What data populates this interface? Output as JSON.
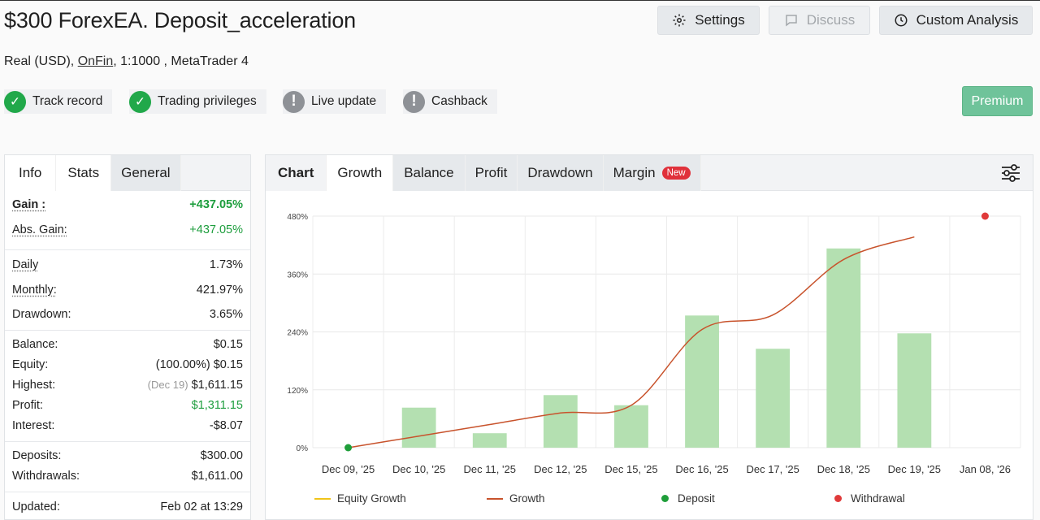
{
  "header": {
    "title": "$300 ForexEA. Deposit_acceleration",
    "subtitle_prefix": "Real (USD),",
    "subtitle_broker": "OnFin",
    "subtitle_suffix": ", 1:1000 , MetaTrader 4",
    "settings_label": "Settings",
    "discuss_label": "Discuss",
    "custom_analysis_label": "Custom Analysis",
    "premium_label": "Premium"
  },
  "badges": [
    {
      "label": "Track record",
      "status": "ok"
    },
    {
      "label": "Trading privileges",
      "status": "ok"
    },
    {
      "label": "Live update",
      "status": "warn"
    },
    {
      "label": "Cashback",
      "status": "warn"
    }
  ],
  "left_tabs": [
    "Info",
    "Stats",
    "General"
  ],
  "stats": {
    "gain_label": "Gain :",
    "gain": "+437.05%",
    "abs_gain_label": "Abs. Gain:",
    "abs_gain": "+437.05%",
    "daily_label": "Daily",
    "daily": "1.73%",
    "monthly_label": "Monthly:",
    "monthly": "421.97%",
    "drawdown_label": "Drawdown:",
    "drawdown": "3.65%",
    "balance_label": "Balance:",
    "balance": "$0.15",
    "equity_label": "Equity:",
    "equity_pct": "(100.00%)",
    "equity": "$0.15",
    "highest_label": "Highest:",
    "highest_date": "(Dec 19)",
    "highest": "$1,611.15",
    "profit_label": "Profit:",
    "profit": "$1,311.15",
    "interest_label": "Interest:",
    "interest": "-$8.07",
    "deposits_label": "Deposits:",
    "deposits": "$300.00",
    "withdrawals_label": "Withdrawals:",
    "withdrawals": "$1,611.00",
    "updated_label": "Updated:",
    "updated": "Feb 02 at 13:29"
  },
  "chart_tabs": {
    "chart": "Chart",
    "growth": "Growth",
    "balance": "Balance",
    "profit": "Profit",
    "drawdown": "Drawdown",
    "margin": "Margin",
    "new_pill": "New"
  },
  "legend": {
    "equity_growth": "Equity Growth",
    "growth": "Growth",
    "deposit": "Deposit",
    "withdrawal": "Withdrawal"
  },
  "colors": {
    "bar": "#b4e0b1",
    "growth_line": "#c8532c",
    "equity_line": "#f0c419",
    "deposit": "#1f9e3a",
    "withdrawal": "#e03a3a"
  },
  "chart_data": {
    "type": "bar",
    "categories": [
      "Dec 09, '25",
      "Dec 10, '25",
      "Dec 11, '25",
      "Dec 12, '25",
      "Dec 15, '25",
      "Dec 16, '25",
      "Dec 17, '25",
      "Dec 18, '25",
      "Dec 19, '25",
      "Jan 08, '26"
    ],
    "y_ticks": [
      "0%",
      "120%",
      "240%",
      "360%",
      "480%"
    ],
    "ylim": [
      0,
      480
    ],
    "series": [
      {
        "name": "Growth",
        "type": "bar",
        "values": [
          0,
          83,
          30,
          109,
          88,
          274,
          205,
          413,
          237,
          null
        ]
      },
      {
        "name": "Growth",
        "type": "line",
        "values": [
          0,
          24,
          48,
          72,
          88,
          245,
          275,
          390,
          437,
          null
        ]
      },
      {
        "name": "Deposit",
        "type": "point",
        "values": [
          0,
          null,
          null,
          null,
          null,
          null,
          null,
          null,
          null,
          null
        ]
      },
      {
        "name": "Withdrawal",
        "type": "point",
        "values": [
          null,
          null,
          null,
          null,
          null,
          null,
          null,
          null,
          null,
          487
        ]
      }
    ],
    "grid": true,
    "legend_position": "bottom"
  }
}
